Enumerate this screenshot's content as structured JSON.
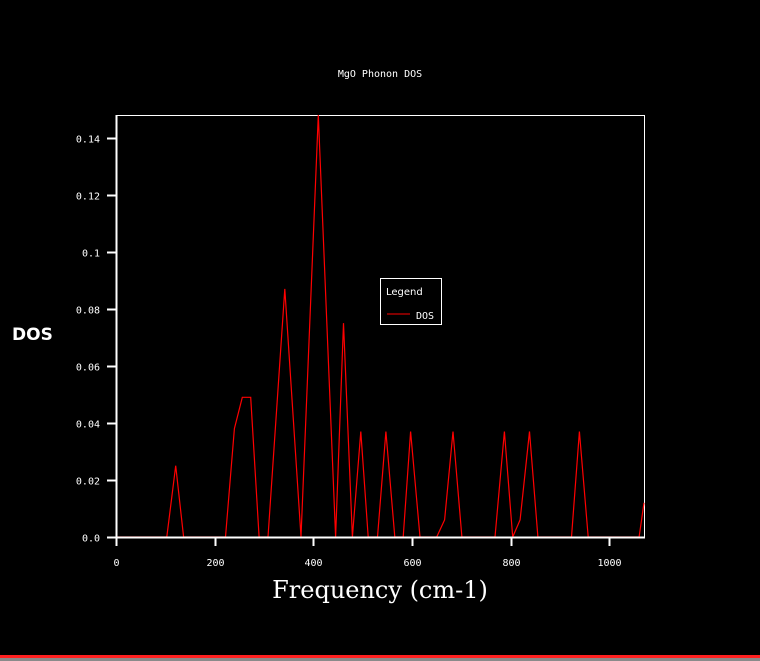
{
  "chart_data": {
    "type": "line",
    "title": "MgO Phonon DOS",
    "xlabel": "Frequency (cm-1)",
    "ylabel": "DOS",
    "xlim": [
      0,
      1070
    ],
    "ylim": [
      0,
      0.148
    ],
    "x_ticks": [
      0,
      200,
      400,
      600,
      800,
      1000
    ],
    "x_tick_labels": [
      "0",
      "200",
      "400",
      "600",
      "800",
      "1000"
    ],
    "y_ticks": [
      0,
      0.02,
      0.04,
      0.06,
      0.08,
      0.1,
      0.12,
      0.14
    ],
    "y_tick_labels": [
      "0.0",
      "0.02",
      "0.04",
      "0.06",
      "0.08",
      "0.1",
      "0.12",
      "0.14"
    ],
    "grid": false,
    "legend": {
      "title": "Legend",
      "placement": "center-right"
    },
    "series": [
      {
        "name": "DOS",
        "color": "#ff0000",
        "points": [
          [
            0,
            0
          ],
          [
            103,
            0
          ],
          [
            121,
            0.025
          ],
          [
            137,
            0
          ],
          [
            222,
            0
          ],
          [
            240,
            0.038
          ],
          [
            256,
            0.049
          ],
          [
            273,
            0.049
          ],
          [
            290,
            0
          ],
          [
            308,
            0
          ],
          [
            342,
            0.087
          ],
          [
            375,
            0
          ],
          [
            410,
            0.148
          ],
          [
            445,
            0
          ],
          [
            461,
            0.075
          ],
          [
            479,
            0
          ],
          [
            496,
            0.037
          ],
          [
            511,
            0
          ],
          [
            530,
            0
          ],
          [
            547,
            0.037
          ],
          [
            565,
            0
          ],
          [
            582,
            0
          ],
          [
            597,
            0.037
          ],
          [
            616,
            0
          ],
          [
            650,
            0
          ],
          [
            666,
            0.006
          ],
          [
            683,
            0.037
          ],
          [
            701,
            0
          ],
          [
            768,
            0
          ],
          [
            787,
            0.037
          ],
          [
            804,
            0
          ],
          [
            819,
            0.006
          ],
          [
            838,
            0.037
          ],
          [
            855,
            0
          ],
          [
            923,
            0
          ],
          [
            939,
            0.037
          ],
          [
            957,
            0
          ],
          [
            1060,
            0
          ],
          [
            1070,
            0.012
          ]
        ]
      }
    ]
  }
}
